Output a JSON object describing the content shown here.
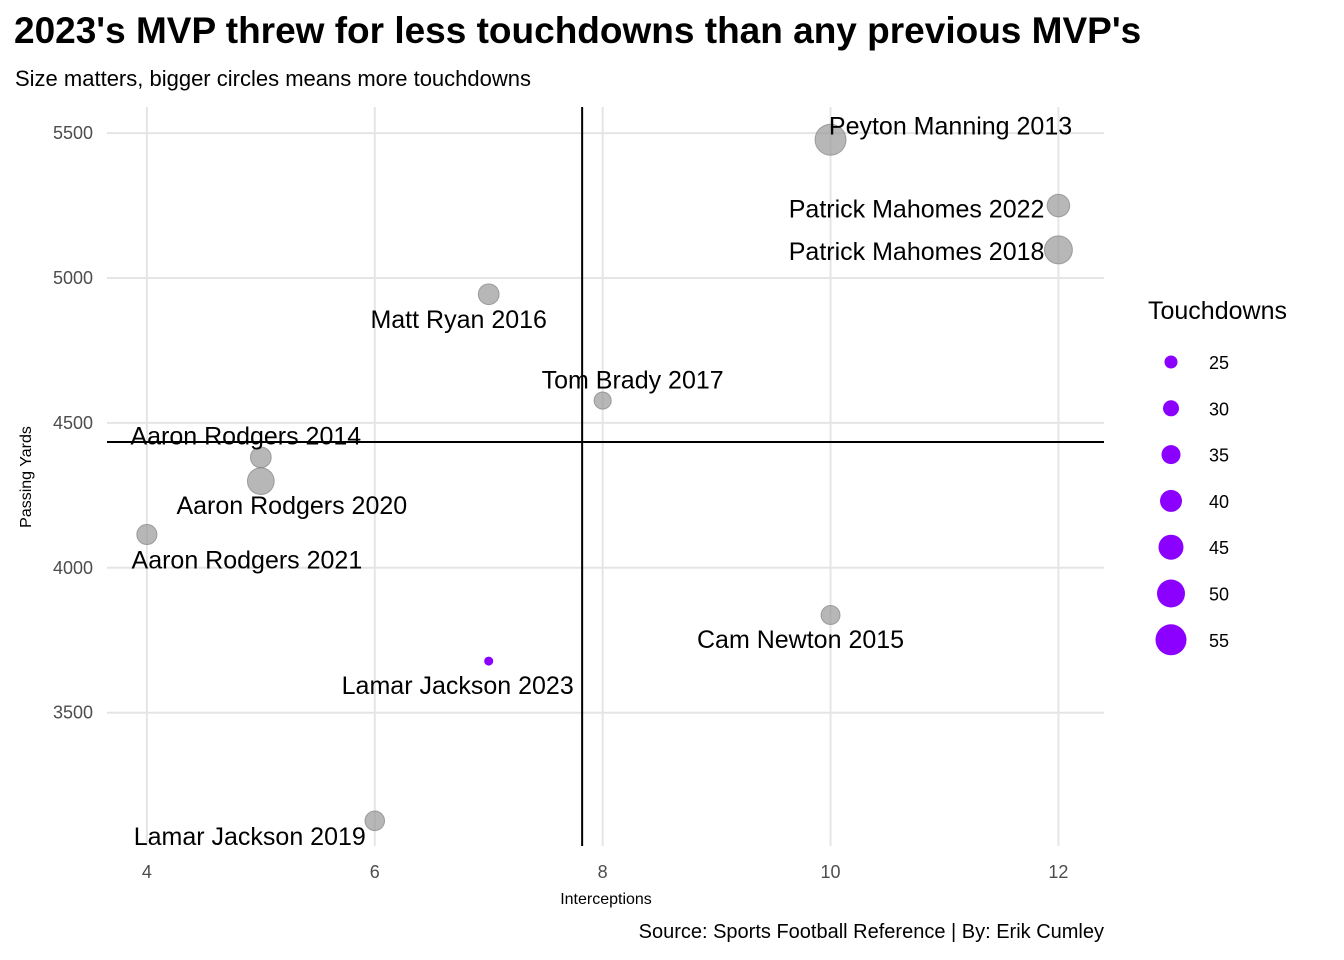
{
  "title": "2023's MVP threw for less touchdowns than any previous MVP's",
  "subtitle": "Size matters, bigger circles means more touchdowns",
  "caption": "Source: Sports Football Reference | By: Erik Cumley",
  "colors": {
    "highlight": "#8B00FF",
    "others": "#999999",
    "grid": "#e5e5e5",
    "reference_lines": "#000000"
  },
  "chart_data": {
    "type": "scatter",
    "xlabel": "Interceptions",
    "ylabel": "Passing Yards",
    "xlim": [
      3.65,
      12.4
    ],
    "ylim": [
      3040,
      5590
    ],
    "x_ticks": [
      4,
      6,
      8,
      10,
      12
    ],
    "y_ticks": [
      3500,
      4000,
      4500,
      5000,
      5500
    ],
    "grid": true,
    "reference_lines": {
      "vertical_x": 7.82,
      "horizontal_y": 4434
    },
    "size_legend": {
      "title": "Touchdowns",
      "values": [
        25,
        30,
        35,
        40,
        45,
        50,
        55
      ],
      "position": "right"
    },
    "points": [
      {
        "label": "Peyton Manning 2013",
        "interceptions": 10,
        "yards": 5477,
        "touchdowns": 55,
        "highlight": false
      },
      {
        "label": "Patrick Mahomes 2022",
        "interceptions": 12,
        "yards": 5250,
        "touchdowns": 41,
        "highlight": false
      },
      {
        "label": "Patrick Mahomes 2018",
        "interceptions": 12,
        "yards": 5097,
        "touchdowns": 50,
        "highlight": false
      },
      {
        "label": "Matt Ryan 2016",
        "interceptions": 7,
        "yards": 4944,
        "touchdowns": 38,
        "highlight": false
      },
      {
        "label": "Tom Brady 2017",
        "interceptions": 8,
        "yards": 4577,
        "touchdowns": 32,
        "highlight": false
      },
      {
        "label": "Aaron Rodgers 2014",
        "interceptions": 5,
        "yards": 4381,
        "touchdowns": 38,
        "highlight": false
      },
      {
        "label": "Aaron Rodgers 2020",
        "interceptions": 5,
        "yards": 4299,
        "touchdowns": 48,
        "highlight": false
      },
      {
        "label": "Aaron Rodgers 2021",
        "interceptions": 4,
        "yards": 4115,
        "touchdowns": 37,
        "highlight": false
      },
      {
        "label": "Cam Newton 2015",
        "interceptions": 10,
        "yards": 3837,
        "touchdowns": 35,
        "highlight": false
      },
      {
        "label": "Lamar Jackson 2023",
        "interceptions": 7,
        "yards": 3678,
        "touchdowns": 24,
        "highlight": true
      },
      {
        "label": "Lamar Jackson 2019",
        "interceptions": 6,
        "yards": 3127,
        "touchdowns": 36,
        "highlight": false
      }
    ]
  }
}
